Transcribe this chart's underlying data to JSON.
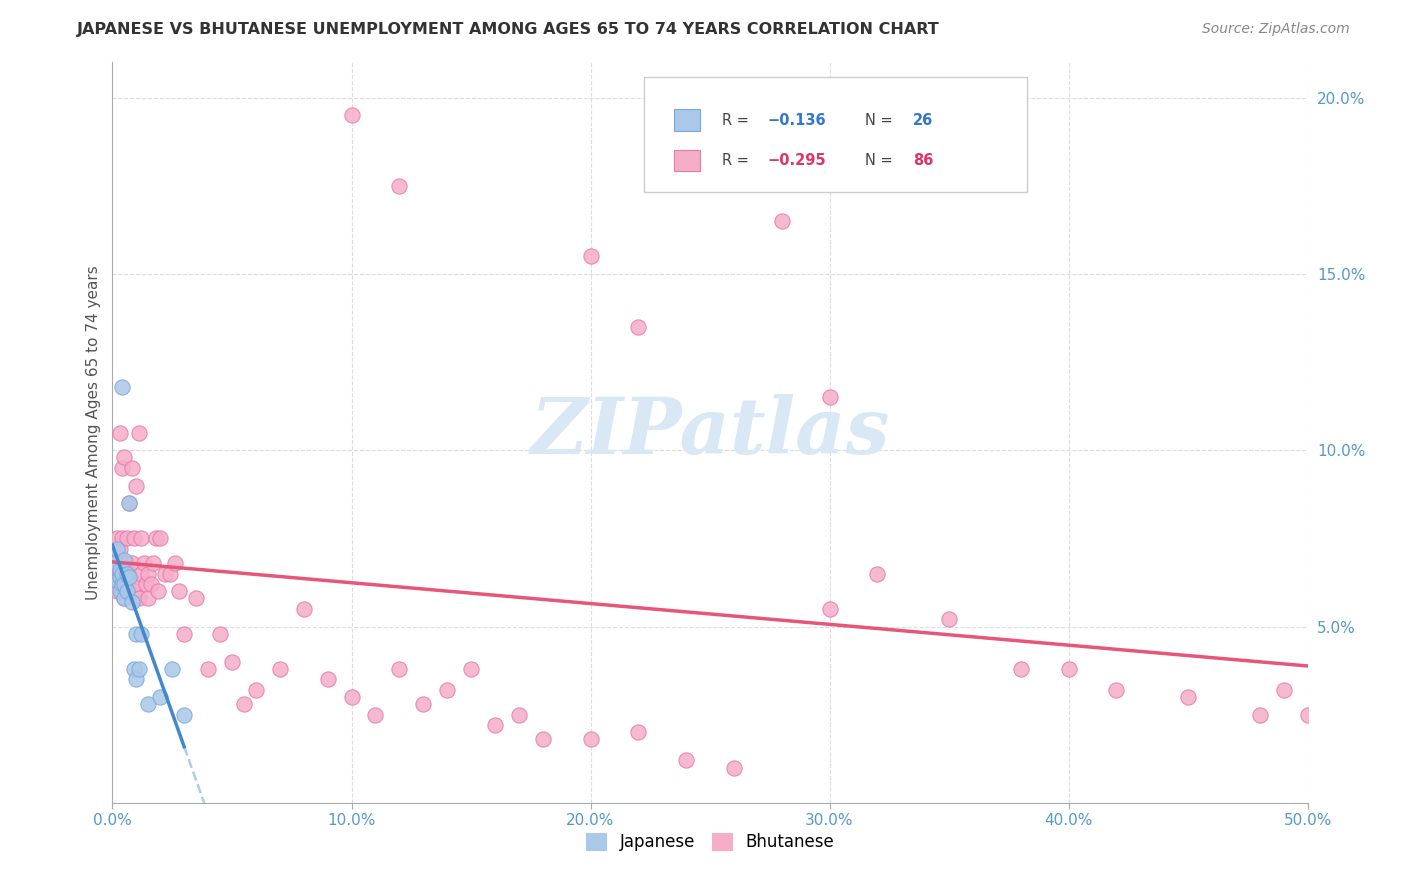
{
  "title": "JAPANESE VS BHUTANESE UNEMPLOYMENT AMONG AGES 65 TO 74 YEARS CORRELATION CHART",
  "source": "Source: ZipAtlas.com",
  "ylabel": "Unemployment Among Ages 65 to 74 years",
  "xlim": [
    0,
    0.5
  ],
  "ylim": [
    0,
    0.21
  ],
  "xtick_vals": [
    0.0,
    0.1,
    0.2,
    0.3,
    0.4,
    0.5
  ],
  "xtick_labels": [
    "0.0%",
    "10.0%",
    "20.0%",
    "30.0%",
    "40.0%",
    "50.0%"
  ],
  "ytick_vals": [
    0.05,
    0.1,
    0.15,
    0.2
  ],
  "ytick_labels": [
    "5.0%",
    "10.0%",
    "15.0%",
    "20.0%"
  ],
  "japanese_color": "#aac8e8",
  "bhutanese_color": "#f5aec8",
  "japanese_edge": "#7aaadd",
  "bhutanese_edge": "#e87aaa",
  "regression_jp_color": "#4488cc",
  "regression_bh_color": "#e8557a",
  "dashed_color": "#aaccee",
  "watermark_color": "#d8e8f5",
  "tick_color": "#5599cc",
  "grid_color": "#dddddd",
  "jp_x": [
    0.001,
    0.002,
    0.002,
    0.003,
    0.003,
    0.003,
    0.004,
    0.004,
    0.004,
    0.005,
    0.005,
    0.005,
    0.006,
    0.006,
    0.007,
    0.007,
    0.008,
    0.009,
    0.01,
    0.01,
    0.011,
    0.012,
    0.015,
    0.02,
    0.025,
    0.03
  ],
  "jp_y": [
    0.068,
    0.063,
    0.072,
    0.06,
    0.064,
    0.066,
    0.062,
    0.065,
    0.118,
    0.058,
    0.062,
    0.069,
    0.065,
    0.06,
    0.064,
    0.085,
    0.057,
    0.038,
    0.035,
    0.048,
    0.038,
    0.048,
    0.028,
    0.03,
    0.038,
    0.025
  ],
  "bh_x": [
    0.001,
    0.001,
    0.002,
    0.002,
    0.002,
    0.003,
    0.003,
    0.003,
    0.003,
    0.004,
    0.004,
    0.004,
    0.004,
    0.005,
    0.005,
    0.005,
    0.005,
    0.006,
    0.006,
    0.006,
    0.007,
    0.007,
    0.007,
    0.008,
    0.008,
    0.008,
    0.009,
    0.009,
    0.01,
    0.01,
    0.011,
    0.011,
    0.012,
    0.012,
    0.013,
    0.014,
    0.015,
    0.015,
    0.016,
    0.017,
    0.018,
    0.019,
    0.02,
    0.022,
    0.024,
    0.026,
    0.028,
    0.03,
    0.035,
    0.04,
    0.045,
    0.05,
    0.055,
    0.06,
    0.07,
    0.08,
    0.09,
    0.1,
    0.11,
    0.12,
    0.13,
    0.14,
    0.15,
    0.16,
    0.17,
    0.18,
    0.2,
    0.22,
    0.24,
    0.26,
    0.3,
    0.32,
    0.35,
    0.38,
    0.4,
    0.42,
    0.45,
    0.48,
    0.49,
    0.5,
    0.1,
    0.12,
    0.2,
    0.22,
    0.28,
    0.3
  ],
  "bh_y": [
    0.065,
    0.07,
    0.06,
    0.068,
    0.075,
    0.062,
    0.065,
    0.072,
    0.105,
    0.06,
    0.065,
    0.075,
    0.095,
    0.058,
    0.063,
    0.068,
    0.098,
    0.062,
    0.068,
    0.075,
    0.06,
    0.065,
    0.085,
    0.063,
    0.068,
    0.095,
    0.06,
    0.075,
    0.062,
    0.09,
    0.058,
    0.105,
    0.065,
    0.075,
    0.068,
    0.062,
    0.058,
    0.065,
    0.062,
    0.068,
    0.075,
    0.06,
    0.075,
    0.065,
    0.065,
    0.068,
    0.06,
    0.048,
    0.058,
    0.038,
    0.048,
    0.04,
    0.028,
    0.032,
    0.038,
    0.055,
    0.035,
    0.03,
    0.025,
    0.038,
    0.028,
    0.032,
    0.038,
    0.022,
    0.025,
    0.018,
    0.018,
    0.02,
    0.012,
    0.01,
    0.055,
    0.065,
    0.052,
    0.038,
    0.038,
    0.032,
    0.03,
    0.025,
    0.032,
    0.025,
    0.195,
    0.175,
    0.155,
    0.135,
    0.165,
    0.115
  ]
}
